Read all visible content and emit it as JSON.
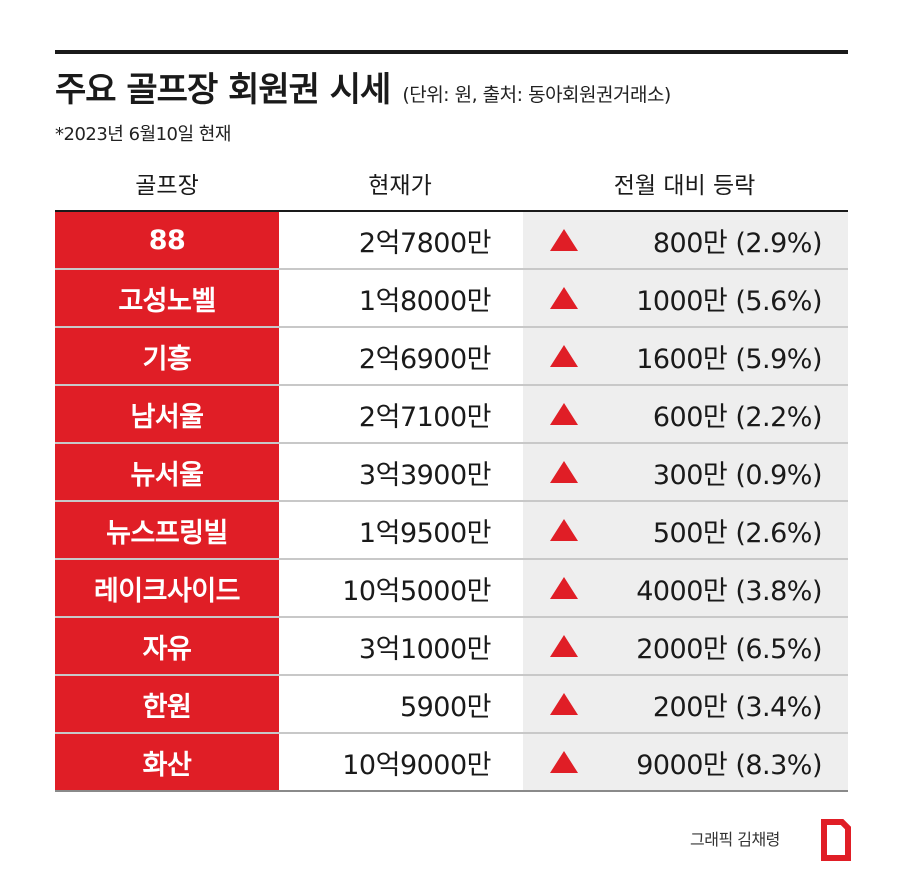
{
  "header": {
    "title": "주요 골프장 회원권 시세",
    "unit_source": "(단위: 원, 출처: 동아회원권거래소)",
    "date_note": "*2023년 6월10일 현재"
  },
  "colors": {
    "accent_red": "#e01e26",
    "change_bg": "#eeeeee"
  },
  "chart_data": {
    "type": "table",
    "columns": [
      "골프장",
      "현재가",
      "전월 대비 등락"
    ],
    "rows": [
      {
        "name": "88",
        "price": "2억7800만",
        "change": "800만 (2.9%)",
        "direction": "up"
      },
      {
        "name": "고성노벨",
        "price": "1억8000만",
        "change": "1000만 (5.6%)",
        "direction": "up"
      },
      {
        "name": "기흥",
        "price": "2억6900만",
        "change": "1600만 (5.9%)",
        "direction": "up"
      },
      {
        "name": "남서울",
        "price": "2억7100만",
        "change": "600만 (2.2%)",
        "direction": "up"
      },
      {
        "name": "뉴서울",
        "price": "3억3900만",
        "change": "300만 (0.9%)",
        "direction": "up"
      },
      {
        "name": "뉴스프링빌",
        "price": "1억9500만",
        "change": "500만 (2.6%)",
        "direction": "up"
      },
      {
        "name": "레이크사이드",
        "price": "10억5000만",
        "change": "4000만 (3.8%)",
        "direction": "up"
      },
      {
        "name": "자유",
        "price": "3억1000만",
        "change": "2000만 (6.5%)",
        "direction": "up"
      },
      {
        "name": "한원",
        "price": "5900만",
        "change": "200만 (3.4%)",
        "direction": "up"
      },
      {
        "name": "화산",
        "price": "10억9000만",
        "change": "9000만 (8.3%)",
        "direction": "up"
      }
    ]
  },
  "footer": {
    "credit": "그래픽 김채령",
    "logo_icon": "donga-logo-icon"
  }
}
